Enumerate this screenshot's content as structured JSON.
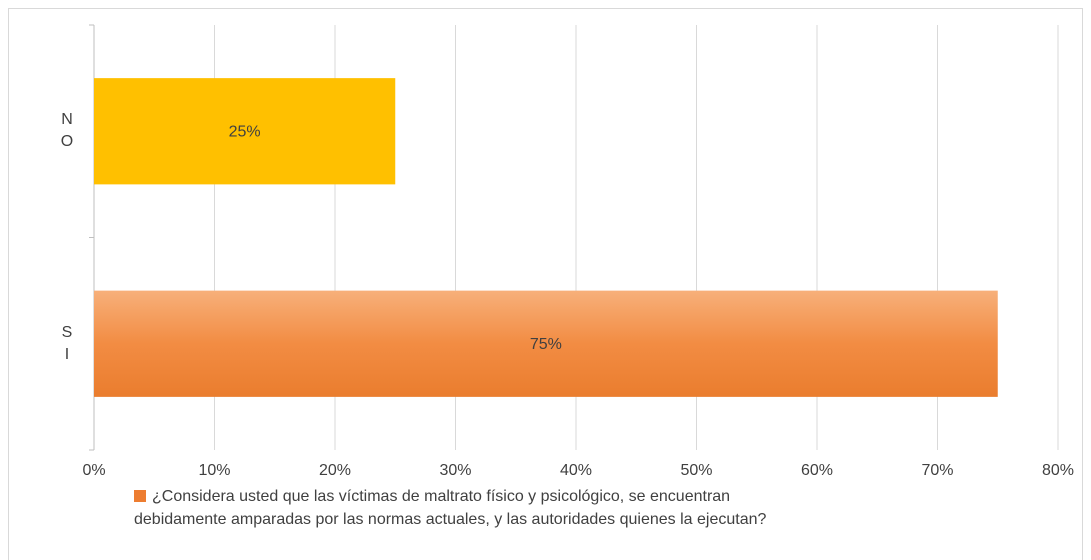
{
  "chart_data": {
    "type": "barh",
    "categories": [
      "NO",
      "SI"
    ],
    "series": [
      {
        "name": "¿Considera usted que las víctimas de maltrato físico y psicológico, se encuentran debidamente amparadas por las normas actuales, y las autoridades quienes la ejecutan?",
        "color": "#ed7d31",
        "colors": [
          "#ffc000",
          "#f08a3c"
        ],
        "values": [
          25,
          75
        ],
        "value_labels": [
          "25%",
          "75%"
        ]
      }
    ],
    "xlim": [
      0,
      80
    ],
    "xticks": [
      {
        "value": 0,
        "label": "0%"
      },
      {
        "value": 10,
        "label": "10%"
      },
      {
        "value": 20,
        "label": "20%"
      },
      {
        "value": 30,
        "label": "30%"
      },
      {
        "value": 40,
        "label": "40%"
      },
      {
        "value": 50,
        "label": "50%"
      },
      {
        "value": 60,
        "label": "60%"
      },
      {
        "value": 70,
        "label": "70%"
      },
      {
        "value": 80,
        "label": "80%"
      }
    ],
    "grid": true,
    "legend": "bottom"
  }
}
